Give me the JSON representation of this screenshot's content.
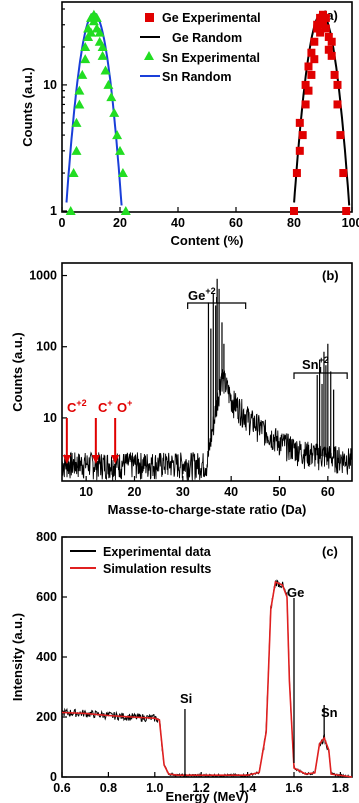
{
  "chart_data": [
    {
      "panel": "(a)",
      "type": "scatter",
      "xlabel": "Content (%)",
      "ylabel": "Counts (a.u.)",
      "xlim": [
        0,
        100
      ],
      "ylim": [
        1,
        40
      ],
      "yscale": "log",
      "xticks": [
        0,
        20,
        40,
        60,
        80,
        100
      ],
      "yticks": [
        1,
        10
      ],
      "legend_position": "top-right",
      "legend": [
        "Ge Experimental",
        "Ge Random",
        "Sn Experimental",
        "Sn Random"
      ],
      "colors": {
        "ge": "#e00000",
        "sn_points": "#22dd22",
        "ge_fit": "#000000",
        "sn_fit": "#1a3fd9"
      },
      "series": [
        {
          "name": "Ge Experimental",
          "marker": "square",
          "points": [
            [
              80,
              1
            ],
            [
              81,
              2
            ],
            [
              82,
              3
            ],
            [
              82,
              5
            ],
            [
              83,
              4
            ],
            [
              84,
              7
            ],
            [
              84,
              10
            ],
            [
              85,
              9
            ],
            [
              85,
              14
            ],
            [
              86,
              12
            ],
            [
              86,
              18
            ],
            [
              87,
              22
            ],
            [
              87,
              16
            ],
            [
              88,
              28
            ],
            [
              88,
              30
            ],
            [
              89,
              26
            ],
            [
              89,
              34
            ],
            [
              90,
              36
            ],
            [
              90,
              30
            ],
            [
              91,
              28
            ],
            [
              91,
              34
            ],
            [
              92,
              24
            ],
            [
              92,
              19
            ],
            [
              93,
              17
            ],
            [
              93,
              22
            ],
            [
              94,
              12
            ],
            [
              95,
              7
            ],
            [
              95,
              10
            ],
            [
              96,
              4
            ],
            [
              97,
              2
            ],
            [
              98,
              1
            ]
          ]
        },
        {
          "name": "Ge Random",
          "line": true,
          "center": 89.5,
          "sigma": 3.6,
          "peak": 37
        },
        {
          "name": "Sn Experimental",
          "marker": "triangle",
          "points": [
            [
              3,
              1
            ],
            [
              4,
              2
            ],
            [
              5,
              3
            ],
            [
              5,
              5
            ],
            [
              6,
              7
            ],
            [
              6,
              9
            ],
            [
              7,
              12
            ],
            [
              8,
              16
            ],
            [
              8,
              20
            ],
            [
              9,
              24
            ],
            [
              9,
              28
            ],
            [
              10,
              26
            ],
            [
              10,
              34
            ],
            [
              11,
              36
            ],
            [
              11,
              32
            ],
            [
              12,
              28
            ],
            [
              12,
              34
            ],
            [
              13,
              22
            ],
            [
              13,
              26
            ],
            [
              14,
              20
            ],
            [
              14,
              17
            ],
            [
              15,
              13
            ],
            [
              16,
              10
            ],
            [
              17,
              8
            ],
            [
              18,
              6
            ],
            [
              19,
              4
            ],
            [
              20,
              3
            ],
            [
              21,
              2
            ],
            [
              22,
              1
            ]
          ]
        },
        {
          "name": "Sn Random",
          "line": true,
          "center": 11,
          "sigma": 3.6,
          "peak": 37
        }
      ]
    },
    {
      "panel": "(b)",
      "type": "line",
      "xlabel": "Masse-to-charge-state ratio (Da)",
      "ylabel": "Counts (a.u.)",
      "xlim": [
        5,
        65
      ],
      "ylim": [
        1.3,
        1500
      ],
      "yscale": "log",
      "xticks": [
        10,
        20,
        30,
        40,
        50,
        60
      ],
      "yticks": [
        10,
        100,
        1000
      ],
      "peaks": {
        "Ge": [
          [
            35.3,
            420
          ],
          [
            35.8,
            180
          ],
          [
            36.3,
            560
          ],
          [
            36.8,
            380
          ],
          [
            37.1,
            900
          ],
          [
            37.5,
            650
          ],
          [
            38.1,
            220
          ],
          [
            38.5,
            110
          ]
        ],
        "Sn": [
          [
            57.8,
            40
          ],
          [
            58.3,
            65
          ],
          [
            58.8,
            30
          ],
          [
            59.2,
            85
          ],
          [
            59.6,
            55
          ],
          [
            60.0,
            110
          ],
          [
            60.6,
            45
          ],
          [
            61.2,
            25
          ]
        ]
      },
      "background": [
        [
          5,
          2.2
        ],
        [
          35,
          2.2
        ],
        [
          38,
          40
        ],
        [
          40,
          18
        ],
        [
          44,
          9
        ],
        [
          50,
          4.5
        ],
        [
          55,
          3.2
        ],
        [
          65,
          2.5
        ]
      ],
      "annotations": {
        "ge_label": "Ge",
        "ge_sup": "+2",
        "sn_label": "Sn",
        "sn_sup": "+2",
        "c2_label": "C",
        "c2_sup": "+2",
        "c1_label": "C",
        "c1_sup": "+",
        "o1_label": "O",
        "o1_sup": "+"
      },
      "arrow_x": [
        6,
        12,
        16
      ],
      "bracket_ranges": {
        "ge": [
          31,
          43
        ],
        "sn": [
          53,
          64
        ]
      },
      "colors": {
        "trace": "#000000",
        "arrow": "#e00000"
      }
    },
    {
      "panel": "(c)",
      "type": "line",
      "xlabel": "Energy (MeV)",
      "ylabel": "Intensity (a.u.)",
      "xlim": [
        0.6,
        1.85
      ],
      "ylim": [
        0,
        800
      ],
      "xticks": [
        0.6,
        0.8,
        1.0,
        1.2,
        1.4,
        1.6,
        1.8
      ],
      "yticks": [
        0,
        200,
        400,
        600,
        800
      ],
      "legend_position": "top-left",
      "legend": [
        "Experimental data",
        "Simulation results"
      ],
      "edge_labels": {
        "si": "Si",
        "ge": "Ge",
        "sn": "Sn"
      },
      "edge_x": {
        "si": 1.13,
        "ge": 1.6,
        "sn": 1.73
      },
      "simulation": [
        [
          0.6,
          215
        ],
        [
          0.7,
          212
        ],
        [
          0.8,
          205
        ],
        [
          0.9,
          200
        ],
        [
          1.0,
          196
        ],
        [
          1.02,
          190
        ],
        [
          1.04,
          40
        ],
        [
          1.06,
          10
        ],
        [
          1.1,
          6
        ],
        [
          1.4,
          6
        ],
        [
          1.45,
          15
        ],
        [
          1.48,
          150
        ],
        [
          1.5,
          560
        ],
        [
          1.52,
          650
        ],
        [
          1.55,
          640
        ],
        [
          1.57,
          600
        ],
        [
          1.58,
          320
        ],
        [
          1.6,
          30
        ],
        [
          1.65,
          10
        ],
        [
          1.69,
          14
        ],
        [
          1.71,
          110
        ],
        [
          1.73,
          130
        ],
        [
          1.75,
          90
        ],
        [
          1.76,
          10
        ],
        [
          1.85,
          0
        ]
      ],
      "colors": {
        "experimental": "#000000",
        "simulation": "#e02020"
      }
    }
  ],
  "panel_labels": [
    "(a)",
    "(b)",
    "(c)"
  ]
}
